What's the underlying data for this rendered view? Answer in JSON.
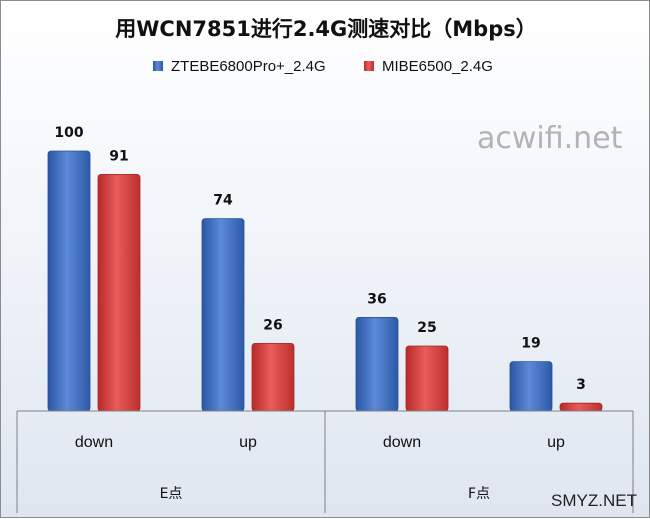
{
  "chart_data": {
    "type": "bar",
    "title": "用WCN7851进行2.4G测速对比（Mbps）",
    "groups": [
      {
        "label": "E点",
        "categories": [
          "down",
          "up"
        ]
      },
      {
        "label": "F点",
        "categories": [
          "down",
          "up"
        ]
      }
    ],
    "categories": [
      "down",
      "up",
      "down",
      "up"
    ],
    "series": [
      {
        "name": "ZTEBE6800Pro+_2.4G",
        "color": "#3f6fc0",
        "values": [
          100,
          74,
          36,
          19
        ]
      },
      {
        "name": "MIBE6500_2.4G",
        "color": "#d94040",
        "values": [
          91,
          26,
          25,
          3
        ]
      }
    ],
    "ylim": [
      0,
      100
    ],
    "grid": false,
    "legend_position": "top"
  },
  "watermarks": {
    "main": "acwifi.net",
    "corner": "SMYZ.NET"
  }
}
